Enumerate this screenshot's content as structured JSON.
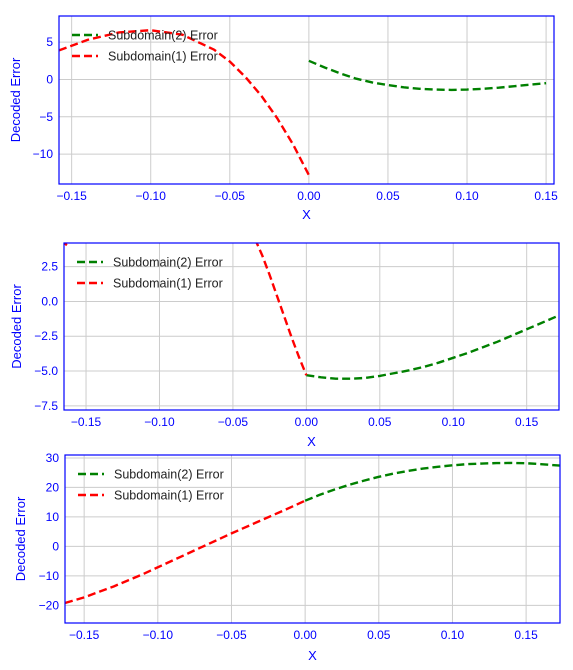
{
  "chart_data": [
    {
      "type": "line",
      "xlabel": "X",
      "ylabel": "Decoded Error",
      "xlim": [
        -0.158,
        0.155
      ],
      "ylim": [
        -14,
        8.5
      ],
      "xticks": [
        -0.15,
        -0.1,
        -0.05,
        0.0,
        0.05,
        0.1,
        0.15
      ],
      "xtick_labels": [
        "−0.15",
        "−0.10",
        "−0.05",
        "0.00",
        "0.05",
        "0.10",
        "0.15"
      ],
      "yticks": [
        -10,
        -5,
        0,
        5
      ],
      "ytick_labels": [
        "−10",
        "−5",
        "0",
        "5"
      ],
      "grid": true,
      "legend": "top-left",
      "series": [
        {
          "name": "Subdomain(2) Error",
          "color": "#008000",
          "x": [
            0.0,
            0.01,
            0.02,
            0.03,
            0.04,
            0.05,
            0.06,
            0.07,
            0.08,
            0.09,
            0.1,
            0.11,
            0.12,
            0.13,
            0.14,
            0.15
          ],
          "y": [
            2.5,
            1.6,
            0.8,
            0.1,
            -0.4,
            -0.75,
            -1.05,
            -1.25,
            -1.35,
            -1.4,
            -1.35,
            -1.25,
            -1.1,
            -0.9,
            -0.7,
            -0.5
          ]
        },
        {
          "name": "Subdomain(1) Error",
          "color": "#ff0000",
          "x": [
            -0.158,
            -0.14,
            -0.12,
            -0.1,
            -0.08,
            -0.06,
            -0.05,
            -0.04,
            -0.03,
            -0.02,
            -0.01,
            0.0
          ],
          "y": [
            3.9,
            5.3,
            6.3,
            6.6,
            6.0,
            4.0,
            2.4,
            0.3,
            -2.2,
            -5.2,
            -8.7,
            -12.8
          ]
        }
      ]
    },
    {
      "type": "line",
      "xlabel": "X",
      "ylabel": "Decoded Error",
      "xlim": [
        -0.165,
        0.172
      ],
      "ylim": [
        -7.8,
        4.2
      ],
      "xticks": [
        -0.15,
        -0.1,
        -0.05,
        0.0,
        0.05,
        0.1,
        0.15
      ],
      "xtick_labels": [
        "−0.15",
        "−0.10",
        "−0.05",
        "0.00",
        "0.05",
        "0.10",
        "0.15"
      ],
      "yticks": [
        -7.5,
        -5.0,
        -2.5,
        0.0,
        2.5
      ],
      "ytick_labels": [
        "−7.5",
        "−5.0",
        "−2.5",
        "0.0",
        "2.5"
      ],
      "grid": true,
      "legend": "top-left",
      "series": [
        {
          "name": "Subdomain(2) Error",
          "color": "#008000",
          "x": [
            0.0,
            0.01,
            0.02,
            0.03,
            0.04,
            0.05,
            0.06,
            0.07,
            0.08,
            0.09,
            0.1,
            0.11,
            0.12,
            0.13,
            0.14,
            0.15,
            0.16,
            0.172
          ],
          "y": [
            -5.3,
            -5.45,
            -5.55,
            -5.55,
            -5.5,
            -5.35,
            -5.15,
            -4.95,
            -4.7,
            -4.4,
            -4.05,
            -3.7,
            -3.3,
            -2.9,
            -2.45,
            -2.0,
            -1.55,
            -1.0
          ]
        },
        {
          "name": "Subdomain(1) Error",
          "color": "#ff0000",
          "x": [
            -0.035,
            -0.03,
            -0.025,
            -0.02,
            -0.015,
            -0.01,
            -0.005,
            0.0
          ],
          "y": [
            4.5,
            3.3,
            1.9,
            0.4,
            -1.1,
            -2.6,
            -4.0,
            -5.3
          ]
        },
        {
          "name": "",
          "color": "#ff0000",
          "x": [
            -0.165,
            -0.163
          ],
          "y": [
            4.2,
            4.05
          ]
        }
      ]
    },
    {
      "type": "line",
      "xlabel": "X",
      "ylabel": "Decoded Error",
      "xlim": [
        -0.163,
        0.173
      ],
      "ylim": [
        -26,
        31
      ],
      "xticks": [
        -0.15,
        -0.1,
        -0.05,
        0.0,
        0.05,
        0.1,
        0.15
      ],
      "xtick_labels": [
        "−0.15",
        "−0.10",
        "−0.05",
        "0.00",
        "0.05",
        "0.10",
        "0.15"
      ],
      "yticks": [
        -20,
        -10,
        0,
        10,
        20,
        30
      ],
      "ytick_labels": [
        "−20",
        "−10",
        "0",
        "10",
        "20",
        "30"
      ],
      "grid": true,
      "legend": "top-left",
      "series": [
        {
          "name": "Subdomain(2) Error",
          "color": "#008000",
          "x": [
            0.0,
            0.01,
            0.02,
            0.03,
            0.04,
            0.05,
            0.06,
            0.07,
            0.08,
            0.09,
            0.1,
            0.11,
            0.12,
            0.13,
            0.14,
            0.15,
            0.16,
            0.173
          ],
          "y": [
            15.5,
            17.5,
            19.3,
            20.9,
            22.3,
            23.6,
            24.7,
            25.6,
            26.4,
            27.0,
            27.5,
            27.9,
            28.1,
            28.25,
            28.3,
            28.2,
            27.9,
            27.4
          ]
        },
        {
          "name": "Subdomain(1) Error",
          "color": "#ff0000",
          "x": [
            -0.163,
            -0.15,
            -0.13,
            -0.11,
            -0.09,
            -0.07,
            -0.05,
            -0.03,
            -0.01,
            0.0
          ],
          "y": [
            -19.2,
            -17.3,
            -13.6,
            -9.4,
            -4.8,
            -0.2,
            4.4,
            8.8,
            13.2,
            15.5
          ]
        }
      ]
    }
  ]
}
